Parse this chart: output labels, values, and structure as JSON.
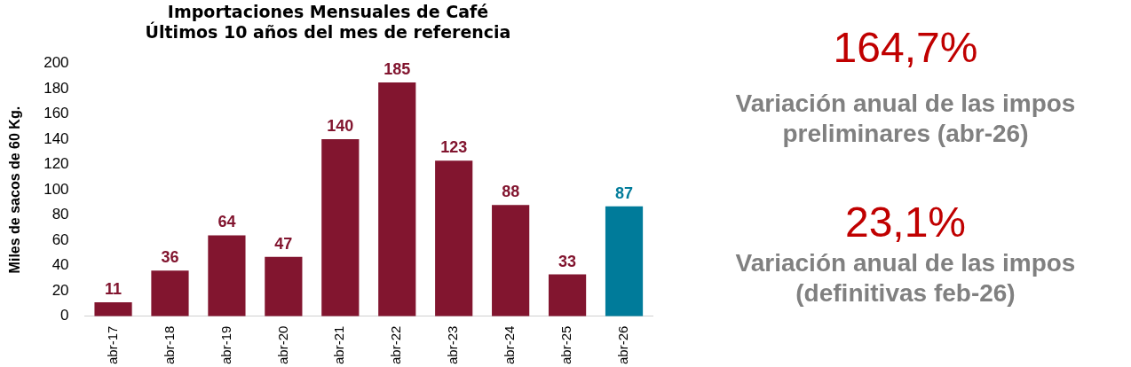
{
  "chart_data": [
    {
      "type": "bar",
      "title": "Importaciones Mensuales de Café\nÚltimos 10 años del mes de referencia",
      "ylabel": "Miles de sacos de 60 Kg.",
      "categories": [
        "abr-17",
        "abr-18",
        "abr-19",
        "abr-20",
        "abr-21",
        "abr-22",
        "abr-23",
        "abr-24",
        "abr-25",
        "abr-26"
      ],
      "values": [
        11,
        36,
        64,
        47,
        140,
        185,
        123,
        88,
        33,
        87
      ],
      "colors": [
        "#82152f",
        "#82152f",
        "#82152f",
        "#82152f",
        "#82152f",
        "#82152f",
        "#82152f",
        "#82152f",
        "#82152f",
        "#007b9a"
      ],
      "ylim": [
        0,
        200
      ],
      "yticks": [
        0,
        20,
        40,
        60,
        80,
        100,
        120,
        140,
        160,
        180,
        200
      ],
      "grid": false,
      "legend": false,
      "data_labels": true
    },
    {
      "type": "other",
      "annotations": [
        "164,7%",
        "Variación anual de las impos preliminares (abr-26)",
        "23,1%",
        "Variación anual de las impos (definitivas feb-26)"
      ]
    }
  ]
}
